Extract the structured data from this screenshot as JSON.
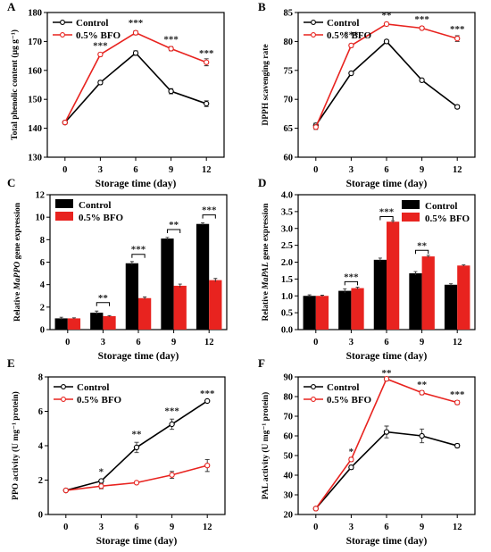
{
  "colors": {
    "control": "#000000",
    "bfo": "#e8231f",
    "axis": "#000000"
  },
  "chart_data": [
    {
      "panel": "A",
      "type": "line",
      "xlabel": "Storage time (day)",
      "ylabel": "Total phenolic content (μg g⁻¹)",
      "categories": [
        "0",
        "3",
        "6",
        "9",
        "12"
      ],
      "ylim": [
        130,
        180
      ],
      "yticks": [
        130,
        140,
        150,
        160,
        170,
        180
      ],
      "series": [
        {
          "name": "Control",
          "color_key": "control",
          "values": [
            142,
            155.8,
            166,
            152.8,
            148.5
          ],
          "err": [
            0.5,
            0.7,
            0.8,
            0.9,
            1.0
          ]
        },
        {
          "name": "0.5% BFO",
          "color_key": "bfo",
          "values": [
            142,
            165.5,
            173,
            167.5,
            162.8
          ],
          "err": [
            0.5,
            0.6,
            0.7,
            0.7,
            1.2
          ]
        }
      ],
      "annotations": [
        "",
        "***",
        "***",
        "***",
        "***"
      ],
      "annotation_y": [
        null,
        167.5,
        175.3,
        169.6,
        164.8
      ],
      "legend": "top-left"
    },
    {
      "panel": "B",
      "type": "line",
      "xlabel": "Storage time (day)",
      "ylabel": "DPPH scavenging rate",
      "categories": [
        "0",
        "3",
        "6",
        "9",
        "12"
      ],
      "ylim": [
        60,
        85
      ],
      "yticks": [
        60,
        65,
        70,
        75,
        80,
        85
      ],
      "series": [
        {
          "name": "Control",
          "color_key": "control",
          "values": [
            65.5,
            74.5,
            80,
            73.3,
            68.7
          ],
          "err": [
            0.4,
            0.3,
            0.3,
            0.3,
            0.3
          ]
        },
        {
          "name": "0.5% BFO",
          "color_key": "bfo",
          "values": [
            65.2,
            79.3,
            83,
            82.3,
            80.5
          ],
          "err": [
            0.4,
            0.3,
            0.3,
            0.3,
            0.5
          ]
        }
      ],
      "annotations": [
        "",
        "***",
        "**",
        "***",
        "***"
      ],
      "annotation_y": [
        null,
        80.6,
        84.0,
        83.3,
        81.6
      ],
      "legend": "top-left"
    },
    {
      "panel": "C",
      "type": "bar",
      "xlabel": "Storage time (day)",
      "ylabel_parts": [
        "Relative ",
        "MaPPO",
        " gene expression"
      ],
      "categories": [
        "0",
        "3",
        "6",
        "9",
        "12"
      ],
      "ylim": [
        0,
        12
      ],
      "yticks": [
        0,
        2,
        4,
        6,
        8,
        10,
        12
      ],
      "series": [
        {
          "name": "Control",
          "color_key": "control",
          "values": [
            1,
            1.5,
            5.9,
            8.1,
            9.4
          ],
          "err": [
            0.1,
            0.15,
            0.15,
            0.1,
            0.1
          ]
        },
        {
          "name": "0.5% BFO",
          "color_key": "bfo",
          "values": [
            1,
            1.2,
            2.8,
            3.9,
            4.4
          ],
          "err": [
            0.05,
            0.05,
            0.1,
            0.15,
            0.15
          ]
        }
      ],
      "annotations": [
        "",
        "**",
        "***",
        "**",
        "***"
      ],
      "annotation_y": [
        null,
        2.4,
        6.7,
        8.9,
        10.2
      ],
      "legend": "top-left"
    },
    {
      "panel": "D",
      "type": "bar",
      "xlabel": "Storage time (day)",
      "ylabel_parts": [
        "Relative ",
        "MaPAL",
        " gene expression"
      ],
      "categories": [
        "0",
        "3",
        "6",
        "9",
        "12"
      ],
      "ylim": [
        0,
        4.0
      ],
      "yticks": [
        0.0,
        0.5,
        1.0,
        1.5,
        2.0,
        2.5,
        3.0,
        3.5,
        4.0
      ],
      "series": [
        {
          "name": "Control",
          "color_key": "control",
          "values": [
            1.0,
            1.15,
            2.07,
            1.67,
            1.33
          ],
          "err": [
            0.03,
            0.06,
            0.05,
            0.05,
            0.03
          ]
        },
        {
          "name": "0.5% BFO",
          "color_key": "bfo",
          "values": [
            1.0,
            1.23,
            3.2,
            2.17,
            1.9
          ],
          "err": [
            0.02,
            0.03,
            0.03,
            0.03,
            0.02
          ]
        }
      ],
      "annotations": [
        "",
        "***",
        "***",
        "**",
        ""
      ],
      "annotation_y": [
        null,
        1.42,
        3.35,
        2.35,
        null
      ],
      "legend": "top-right"
    },
    {
      "panel": "E",
      "type": "line",
      "xlabel": "Storage time (day)",
      "ylabel": "PPO activity (U mg⁻¹ protein)",
      "categories": [
        "0",
        "3",
        "6",
        "9",
        "12"
      ],
      "ylim": [
        0,
        8
      ],
      "yticks": [
        0,
        2,
        4,
        6,
        8
      ],
      "series": [
        {
          "name": "Control",
          "color_key": "control",
          "values": [
            1.4,
            1.95,
            3.9,
            5.25,
            6.6
          ],
          "err": [
            0.05,
            0.05,
            0.3,
            0.3,
            0.05
          ]
        },
        {
          "name": "0.5% BFO",
          "color_key": "bfo",
          "values": [
            1.4,
            1.65,
            1.85,
            2.3,
            2.85
          ],
          "err": [
            0.05,
            0.15,
            0.08,
            0.2,
            0.35
          ]
        }
      ],
      "annotations": [
        "",
        "*",
        "**",
        "***",
        "***"
      ],
      "annotation_y": [
        null,
        2.3,
        4.5,
        5.85,
        6.85
      ],
      "legend": "top-left"
    },
    {
      "panel": "F",
      "type": "line",
      "xlabel": "Storage time (day)",
      "ylabel": "PAL activity (U mg⁻¹ protein)",
      "categories": [
        "0",
        "3",
        "6",
        "9",
        "12"
      ],
      "ylim": [
        20,
        90
      ],
      "yticks": [
        20,
        30,
        40,
        50,
        60,
        70,
        80,
        90
      ],
      "series": [
        {
          "name": "Control",
          "color_key": "control",
          "values": [
            23,
            44,
            62,
            60,
            55
          ],
          "err": [
            0.5,
            1.0,
            3.0,
            3.5,
            1.0
          ]
        },
        {
          "name": "0.5% BFO",
          "color_key": "bfo",
          "values": [
            23,
            48,
            89,
            82,
            77
          ],
          "err": [
            0.5,
            1.0,
            1.0,
            1.0,
            1.0
          ]
        }
      ],
      "annotations": [
        "",
        "*",
        "**",
        "**",
        "***"
      ],
      "annotation_y": [
        null,
        50.5,
        90.5,
        84.5,
        79.5
      ],
      "legend": "top-left"
    }
  ]
}
